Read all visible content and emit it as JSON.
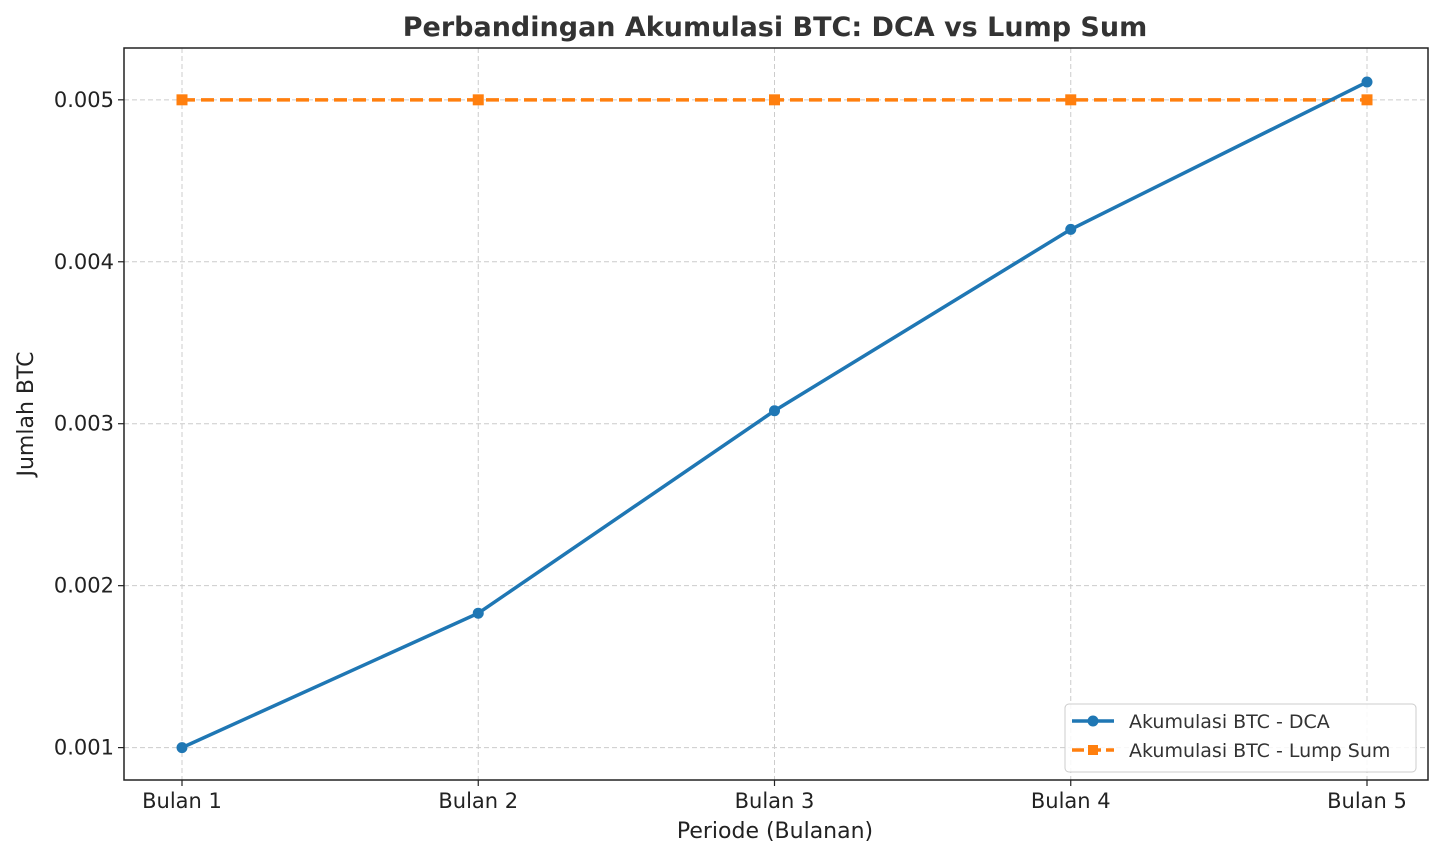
{
  "chart_data": {
    "type": "line",
    "title": "Perbandingan Akumulasi BTC: DCA vs Lump Sum",
    "xlabel": "Periode (Bulanan)",
    "ylabel": "Jumlah BTC",
    "categories": [
      "Bulan 1",
      "Bulan 2",
      "Bulan 3",
      "Bulan 4",
      "Bulan 5"
    ],
    "yticks": [
      0.001,
      0.002,
      0.003,
      0.004,
      0.005
    ],
    "ytick_labels": [
      "0.001",
      "0.002",
      "0.003",
      "0.004",
      "0.005"
    ],
    "ylim": [
      0.0008,
      0.00532
    ],
    "grid": true,
    "legend_position": "bottom-right",
    "series": [
      {
        "name": "Akumulasi BTC - DCA",
        "values": [
          0.001,
          0.00183,
          0.00308,
          0.0042,
          0.00511
        ],
        "color": "#1f77b4",
        "marker": "circle",
        "linestyle": "solid"
      },
      {
        "name": "Akumulasi BTC - Lump Sum",
        "values": [
          0.005,
          0.005,
          0.005,
          0.005,
          0.005
        ],
        "color": "#ff7f0e",
        "marker": "square",
        "linestyle": "dashed"
      }
    ]
  }
}
